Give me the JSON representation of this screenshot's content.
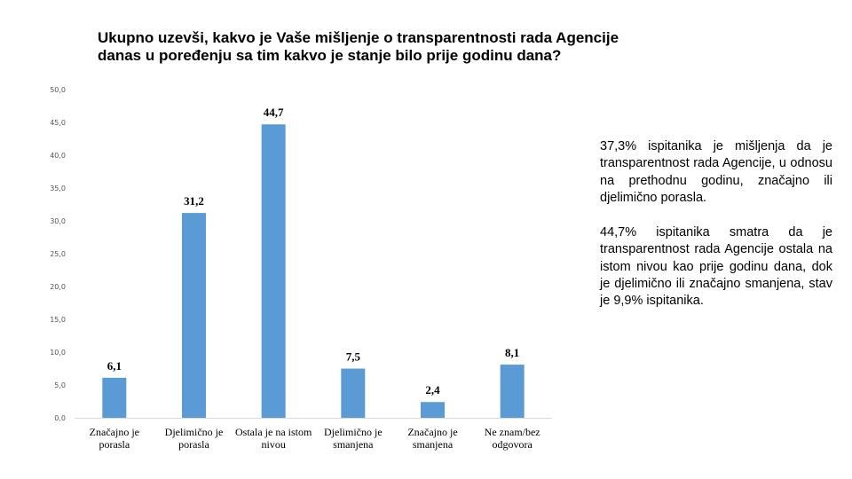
{
  "title": {
    "line1": "Ukupno uzevši, kakvo je Vaše mišljenje o transparentnosti rada Agencije",
    "line2": "danas u poređenju sa tim kakvo je stanje bilo prije godinu dana?"
  },
  "notes": [
    "37,3% ispitanika je mišljenja da je transparentnost rada Agencije, u odnosu na prethodnu godinu, značajno ili djelimično porasla.",
    "44,7% ispitanika smatra da je transparentnost rada Agencije ostala na istom nivou kao prije godinu dana, dok je djelimično ili značajno smanjena, stav je 9,9% ispitanika."
  ],
  "colors": {
    "bar": "#5B9BD5",
    "axis": "#D9D9D9"
  },
  "chart_data": {
    "type": "bar",
    "categories": [
      [
        "Značajno je",
        "porasla"
      ],
      [
        "Djelimično je",
        "porasla"
      ],
      [
        "Ostala je na istom",
        "nivou"
      ],
      [
        "Djelimično je",
        "smanjena"
      ],
      [
        "Značajno je",
        "smanjena"
      ],
      [
        "Ne znam/bez",
        "odgovora"
      ]
    ],
    "values": [
      6.1,
      31.2,
      44.7,
      7.5,
      2.4,
      8.1
    ],
    "value_labels": [
      "6,1",
      "31,2",
      "44,7",
      "7,5",
      "2,4",
      "8,1"
    ],
    "ylim": [
      0,
      50
    ],
    "yticks": [
      0,
      5,
      10,
      15,
      20,
      25,
      30,
      35,
      40,
      45,
      50
    ],
    "ytick_labels": [
      "0,0",
      "5,0",
      "10,0",
      "15,0",
      "20,0",
      "25,0",
      "30,0",
      "35,0",
      "40,0",
      "45,0",
      "50,0"
    ],
    "grid": false,
    "legend": "none"
  }
}
